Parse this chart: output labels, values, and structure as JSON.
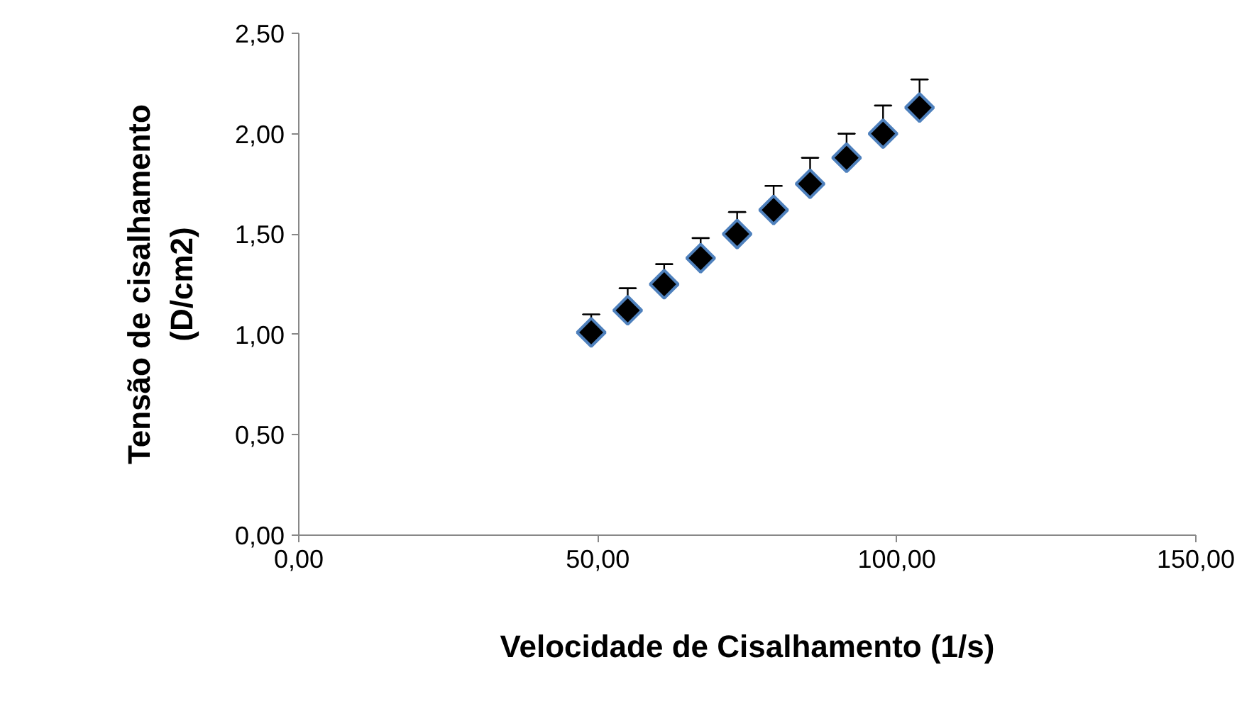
{
  "chart_data": {
    "type": "scatter",
    "xlabel": "Velocidade de Cisalhamento (1/s)",
    "ylabel": "Tensão de cisalhamento\n(D/cm2)",
    "x": [
      48.9,
      55.0,
      61.1,
      67.2,
      73.3,
      79.4,
      85.5,
      91.6,
      97.7,
      103.8
    ],
    "series": [
      {
        "color": "#000000",
        "values": [
          1.01,
          1.12,
          1.25,
          1.38,
          1.5,
          1.62,
          1.75,
          1.88,
          2.0,
          2.13
        ],
        "errors": [
          [
            1.01,
            1.1
          ],
          [
            1.12,
            1.23
          ],
          [
            1.25,
            1.35
          ],
          [
            1.38,
            1.48
          ],
          [
            1.5,
            1.61
          ],
          [
            1.62,
            1.74
          ],
          [
            1.75,
            1.88
          ],
          [
            1.88,
            2.0
          ],
          [
            2.0,
            2.14
          ],
          [
            2.13,
            2.27
          ]
        ]
      }
    ],
    "marker": "diamond",
    "grid": false,
    "xlim": [
      0,
      150
    ],
    "xticks": [
      {
        "value": 0,
        "label": "0,00"
      },
      {
        "value": 50,
        "label": "50,00"
      },
      {
        "value": 100,
        "label": "100,00"
      },
      {
        "value": 150,
        "label": "150,00"
      }
    ],
    "ylim": [
      0,
      2.5
    ],
    "yticks": [
      {
        "value": 0,
        "label": "0,00"
      },
      {
        "value": 0.5,
        "label": "0,50"
      },
      {
        "value": 1,
        "label": "1,00"
      },
      {
        "value": 1.5,
        "label": "1,50"
      },
      {
        "value": 2,
        "label": "2,00"
      },
      {
        "value": 2.5,
        "label": "2,50"
      }
    ]
  }
}
